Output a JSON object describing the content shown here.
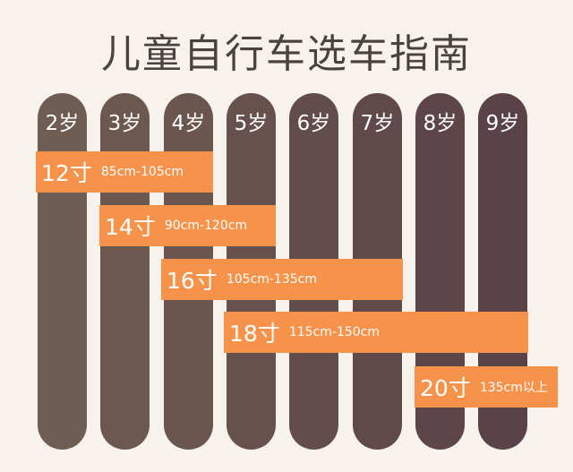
{
  "title": "儿童自行车选车指南",
  "ages": [
    "2岁",
    "3岁",
    "4岁",
    "5岁",
    "6岁",
    "7岁",
    "8岁",
    "9岁"
  ],
  "bikes": [
    {
      "size": "12寸",
      "range": "85cm-105cm"
    },
    {
      "size": "14寸",
      "range": "90cm-120cm"
    },
    {
      "size": "16寸",
      "range": "105cm-135cm"
    },
    {
      "size": "18寸",
      "range": "115cm-150cm"
    },
    {
      "size": "20寸",
      "range": "135cm以上"
    }
  ],
  "colors": {
    "column_left": "#6e5a50",
    "column_right": "#5a4049",
    "bar": "#f7924a",
    "background": "#f7f3ec"
  }
}
